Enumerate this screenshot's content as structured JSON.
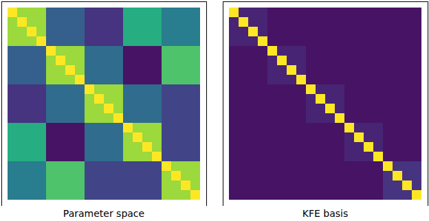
{
  "chart_data": [
    {
      "type": "heatmap",
      "title": "Parameter space",
      "color": "viridis",
      "zlim": [
        0,
        1
      ],
      "tick_labels": false,
      "cells": [
        [
          1,
          0.85,
          0.85,
          0.85,
          0.3,
          0.3,
          0.3,
          0.3,
          0.15,
          0.15,
          0.15,
          0.15,
          0.62,
          0.62,
          0.62,
          0.62,
          0.42,
          0.42,
          0.42,
          0.42
        ],
        [
          0.85,
          1,
          0.85,
          0.85,
          0.3,
          0.3,
          0.3,
          0.3,
          0.15,
          0.15,
          0.15,
          0.15,
          0.62,
          0.62,
          0.62,
          0.62,
          0.42,
          0.42,
          0.42,
          0.42
        ],
        [
          0.85,
          0.85,
          1,
          0.85,
          0.3,
          0.3,
          0.3,
          0.3,
          0.15,
          0.15,
          0.15,
          0.15,
          0.62,
          0.62,
          0.62,
          0.62,
          0.42,
          0.42,
          0.42,
          0.42
        ],
        [
          0.85,
          0.85,
          0.85,
          1,
          0.3,
          0.3,
          0.3,
          0.3,
          0.15,
          0.15,
          0.15,
          0.15,
          0.62,
          0.62,
          0.62,
          0.62,
          0.42,
          0.42,
          0.42,
          0.42
        ],
        [
          0.3,
          0.3,
          0.3,
          0.3,
          1,
          0.85,
          0.85,
          0.85,
          0.35,
          0.35,
          0.35,
          0.35,
          0.05,
          0.05,
          0.05,
          0.05,
          0.72,
          0.72,
          0.72,
          0.72
        ],
        [
          0.3,
          0.3,
          0.3,
          0.3,
          0.85,
          1,
          0.85,
          0.85,
          0.35,
          0.35,
          0.35,
          0.35,
          0.05,
          0.05,
          0.05,
          0.05,
          0.72,
          0.72,
          0.72,
          0.72
        ],
        [
          0.3,
          0.3,
          0.3,
          0.3,
          0.85,
          0.85,
          1,
          0.85,
          0.35,
          0.35,
          0.35,
          0.35,
          0.05,
          0.05,
          0.05,
          0.05,
          0.72,
          0.72,
          0.72,
          0.72
        ],
        [
          0.3,
          0.3,
          0.3,
          0.3,
          0.85,
          0.85,
          0.85,
          1,
          0.35,
          0.35,
          0.35,
          0.35,
          0.05,
          0.05,
          0.05,
          0.05,
          0.72,
          0.72,
          0.72,
          0.72
        ],
        [
          0.15,
          0.15,
          0.15,
          0.15,
          0.35,
          0.35,
          0.35,
          0.35,
          1,
          0.85,
          0.85,
          0.85,
          0.35,
          0.35,
          0.35,
          0.35,
          0.2,
          0.2,
          0.2,
          0.2
        ],
        [
          0.15,
          0.15,
          0.15,
          0.15,
          0.35,
          0.35,
          0.35,
          0.35,
          0.85,
          1,
          0.85,
          0.85,
          0.35,
          0.35,
          0.35,
          0.35,
          0.2,
          0.2,
          0.2,
          0.2
        ],
        [
          0.15,
          0.15,
          0.15,
          0.15,
          0.35,
          0.35,
          0.35,
          0.35,
          0.85,
          0.85,
          1,
          0.85,
          0.35,
          0.35,
          0.35,
          0.35,
          0.2,
          0.2,
          0.2,
          0.2
        ],
        [
          0.15,
          0.15,
          0.15,
          0.15,
          0.35,
          0.35,
          0.35,
          0.35,
          0.85,
          0.85,
          0.85,
          1,
          0.35,
          0.35,
          0.35,
          0.35,
          0.2,
          0.2,
          0.2,
          0.2
        ],
        [
          0.62,
          0.62,
          0.62,
          0.62,
          0.05,
          0.05,
          0.05,
          0.05,
          0.35,
          0.35,
          0.35,
          0.35,
          1,
          0.85,
          0.85,
          0.85,
          0.2,
          0.2,
          0.2,
          0.2
        ],
        [
          0.62,
          0.62,
          0.62,
          0.62,
          0.05,
          0.05,
          0.05,
          0.05,
          0.35,
          0.35,
          0.35,
          0.35,
          0.85,
          1,
          0.85,
          0.85,
          0.2,
          0.2,
          0.2,
          0.2
        ],
        [
          0.62,
          0.62,
          0.62,
          0.62,
          0.05,
          0.05,
          0.05,
          0.05,
          0.35,
          0.35,
          0.35,
          0.35,
          0.85,
          0.85,
          1,
          0.85,
          0.2,
          0.2,
          0.2,
          0.2
        ],
        [
          0.62,
          0.62,
          0.62,
          0.62,
          0.05,
          0.05,
          0.05,
          0.05,
          0.35,
          0.35,
          0.35,
          0.35,
          0.85,
          0.85,
          0.85,
          1,
          0.2,
          0.2,
          0.2,
          0.2
        ],
        [
          0.42,
          0.42,
          0.42,
          0.42,
          0.72,
          0.72,
          0.72,
          0.72,
          0.2,
          0.2,
          0.2,
          0.2,
          0.2,
          0.2,
          0.2,
          0.2,
          1,
          0.85,
          0.85,
          0.85
        ],
        [
          0.42,
          0.42,
          0.42,
          0.42,
          0.72,
          0.72,
          0.72,
          0.72,
          0.2,
          0.2,
          0.2,
          0.2,
          0.2,
          0.2,
          0.2,
          0.2,
          0.85,
          1,
          0.85,
          0.85
        ],
        [
          0.42,
          0.42,
          0.42,
          0.42,
          0.72,
          0.72,
          0.72,
          0.72,
          0.2,
          0.2,
          0.2,
          0.2,
          0.2,
          0.2,
          0.2,
          0.2,
          0.85,
          0.85,
          1,
          0.85
        ],
        [
          0.42,
          0.42,
          0.42,
          0.42,
          0.72,
          0.72,
          0.72,
          0.72,
          0.2,
          0.2,
          0.2,
          0.2,
          0.2,
          0.2,
          0.2,
          0.2,
          0.85,
          0.85,
          0.85,
          1
        ]
      ]
    },
    {
      "type": "heatmap",
      "title": "KFE basis",
      "color": "viridis",
      "zlim": [
        0,
        1
      ],
      "tick_labels": false,
      "cells": [
        [
          1,
          0.1,
          0.1,
          0.1,
          0.05,
          0.05,
          0.05,
          0.05,
          0.05,
          0.05,
          0.05,
          0.05,
          0.05,
          0.05,
          0.05,
          0.05,
          0.05,
          0.05,
          0.05,
          0.05
        ],
        [
          0.1,
          1,
          0.1,
          0.1,
          0.05,
          0.05,
          0.05,
          0.05,
          0.05,
          0.05,
          0.05,
          0.05,
          0.05,
          0.05,
          0.05,
          0.05,
          0.05,
          0.05,
          0.05,
          0.05
        ],
        [
          0.1,
          0.1,
          1,
          0.1,
          0.05,
          0.05,
          0.05,
          0.05,
          0.05,
          0.05,
          0.05,
          0.05,
          0.05,
          0.05,
          0.05,
          0.05,
          0.05,
          0.05,
          0.05,
          0.05
        ],
        [
          0.1,
          0.1,
          0.1,
          1,
          0.05,
          0.05,
          0.05,
          0.05,
          0.05,
          0.05,
          0.05,
          0.05,
          0.05,
          0.05,
          0.05,
          0.05,
          0.05,
          0.05,
          0.05,
          0.05
        ],
        [
          0.05,
          0.05,
          0.05,
          0.05,
          1,
          0.1,
          0.1,
          0.1,
          0.05,
          0.05,
          0.05,
          0.05,
          0.05,
          0.05,
          0.05,
          0.05,
          0.05,
          0.05,
          0.05,
          0.05
        ],
        [
          0.05,
          0.05,
          0.05,
          0.05,
          0.1,
          1,
          0.1,
          0.1,
          0.05,
          0.05,
          0.05,
          0.05,
          0.05,
          0.05,
          0.05,
          0.05,
          0.05,
          0.05,
          0.05,
          0.05
        ],
        [
          0.05,
          0.05,
          0.05,
          0.05,
          0.1,
          0.1,
          1,
          0.1,
          0.05,
          0.05,
          0.05,
          0.05,
          0.05,
          0.05,
          0.05,
          0.05,
          0.05,
          0.05,
          0.05,
          0.05
        ],
        [
          0.05,
          0.05,
          0.05,
          0.05,
          0.1,
          0.1,
          0.1,
          1,
          0.05,
          0.05,
          0.05,
          0.05,
          0.05,
          0.05,
          0.05,
          0.05,
          0.05,
          0.05,
          0.05,
          0.05
        ],
        [
          0.05,
          0.05,
          0.05,
          0.05,
          0.05,
          0.05,
          0.05,
          0.05,
          1,
          0.1,
          0.1,
          0.1,
          0.05,
          0.05,
          0.05,
          0.05,
          0.05,
          0.05,
          0.05,
          0.05
        ],
        [
          0.05,
          0.05,
          0.05,
          0.05,
          0.05,
          0.05,
          0.05,
          0.05,
          0.1,
          1,
          0.1,
          0.1,
          0.05,
          0.05,
          0.05,
          0.05,
          0.05,
          0.05,
          0.05,
          0.05
        ],
        [
          0.05,
          0.05,
          0.05,
          0.05,
          0.05,
          0.05,
          0.05,
          0.05,
          0.1,
          0.1,
          1,
          0.1,
          0.05,
          0.05,
          0.05,
          0.05,
          0.05,
          0.05,
          0.05,
          0.05
        ],
        [
          0.05,
          0.05,
          0.05,
          0.05,
          0.05,
          0.05,
          0.05,
          0.05,
          0.1,
          0.1,
          0.1,
          1,
          0.05,
          0.05,
          0.05,
          0.05,
          0.05,
          0.05,
          0.05,
          0.05
        ],
        [
          0.05,
          0.05,
          0.05,
          0.05,
          0.05,
          0.05,
          0.05,
          0.05,
          0.05,
          0.05,
          0.05,
          0.05,
          1,
          0.1,
          0.1,
          0.1,
          0.05,
          0.05,
          0.05,
          0.05
        ],
        [
          0.05,
          0.05,
          0.05,
          0.05,
          0.05,
          0.05,
          0.05,
          0.05,
          0.05,
          0.05,
          0.05,
          0.05,
          0.1,
          1,
          0.1,
          0.1,
          0.05,
          0.05,
          0.05,
          0.05
        ],
        [
          0.05,
          0.05,
          0.05,
          0.05,
          0.05,
          0.05,
          0.05,
          0.05,
          0.05,
          0.05,
          0.05,
          0.05,
          0.1,
          0.1,
          1,
          0.1,
          0.05,
          0.05,
          0.05,
          0.05
        ],
        [
          0.05,
          0.05,
          0.05,
          0.05,
          0.05,
          0.05,
          0.05,
          0.05,
          0.05,
          0.05,
          0.05,
          0.05,
          0.1,
          0.1,
          0.1,
          1,
          0.05,
          0.05,
          0.05,
          0.05
        ],
        [
          0.05,
          0.05,
          0.05,
          0.05,
          0.05,
          0.05,
          0.05,
          0.05,
          0.05,
          0.05,
          0.05,
          0.05,
          0.05,
          0.05,
          0.05,
          0.05,
          1,
          0.15,
          0.15,
          0.15
        ],
        [
          0.05,
          0.05,
          0.05,
          0.05,
          0.05,
          0.05,
          0.05,
          0.05,
          0.05,
          0.05,
          0.05,
          0.05,
          0.05,
          0.05,
          0.05,
          0.05,
          0.15,
          1,
          0.15,
          0.15
        ],
        [
          0.05,
          0.05,
          0.05,
          0.05,
          0.05,
          0.05,
          0.05,
          0.05,
          0.05,
          0.05,
          0.05,
          0.05,
          0.05,
          0.05,
          0.05,
          0.05,
          0.15,
          0.15,
          1,
          0.15
        ],
        [
          0.05,
          0.05,
          0.05,
          0.05,
          0.05,
          0.05,
          0.05,
          0.05,
          0.05,
          0.05,
          0.05,
          0.05,
          0.05,
          0.05,
          0.05,
          0.05,
          0.15,
          0.15,
          0.15,
          1
        ]
      ]
    }
  ]
}
